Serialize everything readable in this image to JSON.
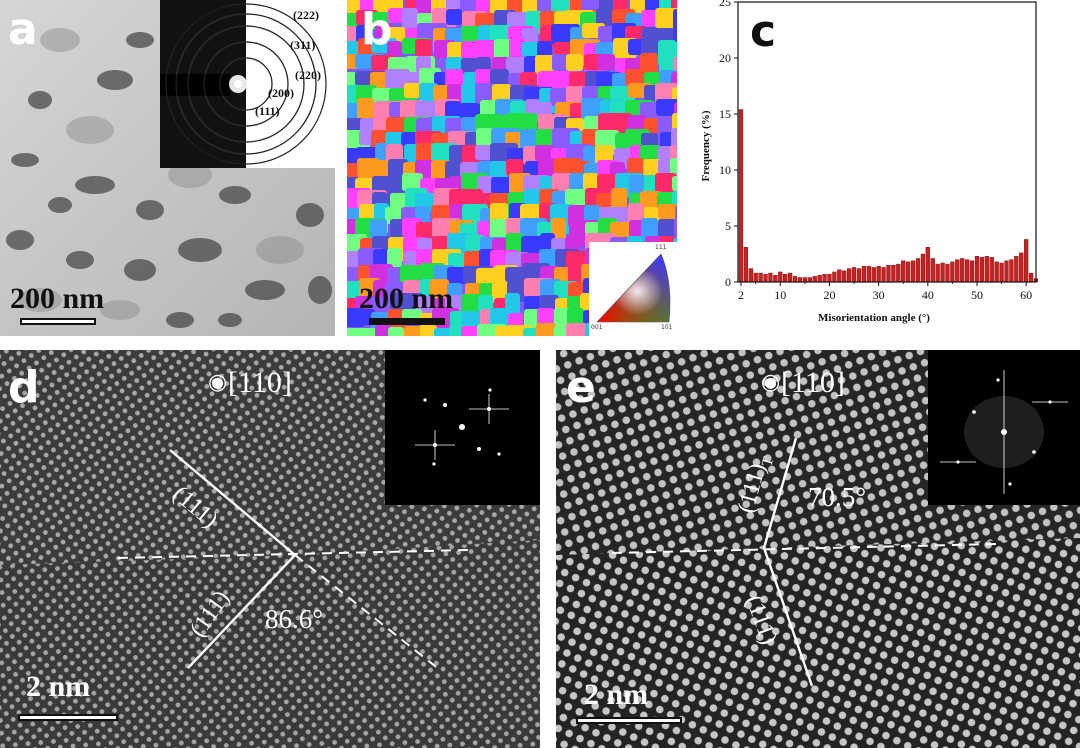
{
  "panels": {
    "a": {
      "letter": "a",
      "scale_label": "200 nm",
      "saed_rings": [
        "(222)",
        "(311)",
        "(220)",
        "(200)",
        "(111)"
      ]
    },
    "b": {
      "letter": "b",
      "scale_label": "200 nm",
      "ipf_legend": [
        "001",
        "101",
        "111"
      ]
    },
    "c": {
      "letter": "c"
    },
    "d": {
      "letter": "d",
      "zone_axis": "[110]",
      "planes": [
        "(111)",
        "(111)"
      ],
      "angle": "86.6°",
      "scale_label": "2 nm"
    },
    "e": {
      "letter": "e",
      "zone_axis": "[110]",
      "planes": [
        "(111)T",
        "(111)"
      ],
      "plane_T_main": "(111)",
      "plane_T_sub": "T",
      "angle": "70.5°",
      "scale_label": "2 nm"
    }
  },
  "chart_data": {
    "type": "bar",
    "xlabel": "Misorientation angle (°)",
    "ylabel": "Frequency (%)",
    "xlim": [
      1.4,
      62
    ],
    "ylim": [
      0,
      25
    ],
    "xticks": [
      2,
      10,
      20,
      30,
      40,
      50,
      60
    ],
    "yticks": [
      0,
      5,
      10,
      15,
      20,
      25
    ],
    "bar_color": "#cc1f1f",
    "x": [
      2,
      3,
      4,
      5,
      6,
      7,
      8,
      9,
      10,
      11,
      12,
      13,
      14,
      15,
      16,
      17,
      18,
      19,
      20,
      21,
      22,
      23,
      24,
      25,
      26,
      27,
      28,
      29,
      30,
      31,
      32,
      33,
      34,
      35,
      36,
      37,
      38,
      39,
      40,
      41,
      42,
      43,
      44,
      45,
      46,
      47,
      48,
      49,
      50,
      51,
      52,
      53,
      54,
      55,
      56,
      57,
      58,
      59,
      60,
      61,
      62
    ],
    "values": [
      15.4,
      3.1,
      1.2,
      0.8,
      0.8,
      0.7,
      0.8,
      0.6,
      0.9,
      0.7,
      0.8,
      0.5,
      0.4,
      0.4,
      0.4,
      0.5,
      0.6,
      0.7,
      0.7,
      0.9,
      1.1,
      1.0,
      1.2,
      1.3,
      1.2,
      1.4,
      1.4,
      1.3,
      1.4,
      1.3,
      1.5,
      1.5,
      1.6,
      1.9,
      1.8,
      1.9,
      2.1,
      2.5,
      3.1,
      2.1,
      1.6,
      1.7,
      1.6,
      1.8,
      2.0,
      2.1,
      2.0,
      1.9,
      2.3,
      2.2,
      2.3,
      2.2,
      1.8,
      1.7,
      1.9,
      2.0,
      2.3,
      2.6,
      3.8,
      0.8,
      0.3
    ]
  }
}
